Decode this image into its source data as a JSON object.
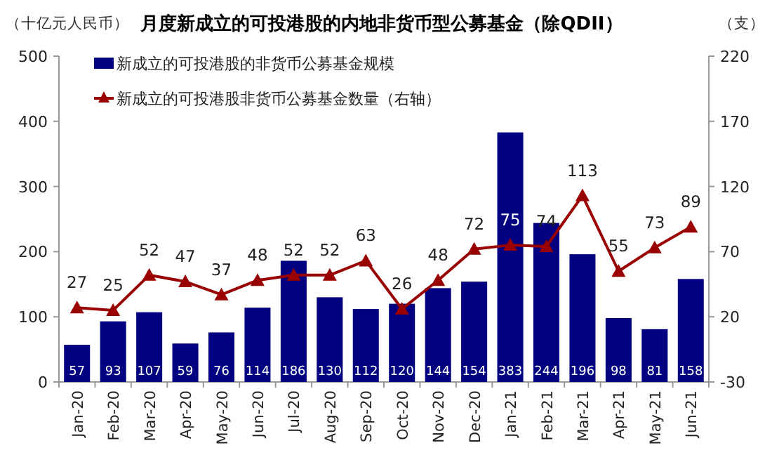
{
  "chart_data": {
    "type": "bar",
    "title": "月度新成立的可投港股的内地非货币型公募基金（除QDII）",
    "ylabel": "（十亿元人民币）",
    "y2label": "（支）",
    "categories": [
      "Jan-20",
      "Feb-20",
      "Mar-20",
      "Apr-20",
      "May-20",
      "Jun-20",
      "Jul-20",
      "Aug-20",
      "Sep-20",
      "Oct-20",
      "Nov-20",
      "Dec-20",
      "Jan-21",
      "Feb-21",
      "Mar-21",
      "Apr-21",
      "May-21",
      "Jun-21"
    ],
    "series": [
      {
        "name": "新成立的可投港股的非货币公募基金规模",
        "color": "#000080",
        "values": [
          57,
          93,
          107,
          59,
          76,
          114,
          186,
          130,
          112,
          120,
          144,
          154,
          383,
          244,
          196,
          98,
          81,
          158
        ]
      },
      {
        "name": "新成立的可投港股非货币公募基金数量（右轴）",
        "type": "line",
        "axis": "y2",
        "color": "#990000",
        "marker": "triangle",
        "values": [
          27,
          25,
          52,
          47,
          37,
          48,
          52,
          52,
          63,
          26,
          48,
          72,
          75,
          74,
          113,
          55,
          73,
          89
        ]
      }
    ],
    "ylim": [
      0,
      500
    ],
    "yticks": [
      0,
      100,
      200,
      300,
      400,
      500
    ],
    "y2lim": [
      -30,
      220
    ],
    "y2ticks": [
      -30,
      20,
      70,
      120,
      170,
      220
    ],
    "data_labels": true,
    "legend": "top left",
    "grid": false
  }
}
